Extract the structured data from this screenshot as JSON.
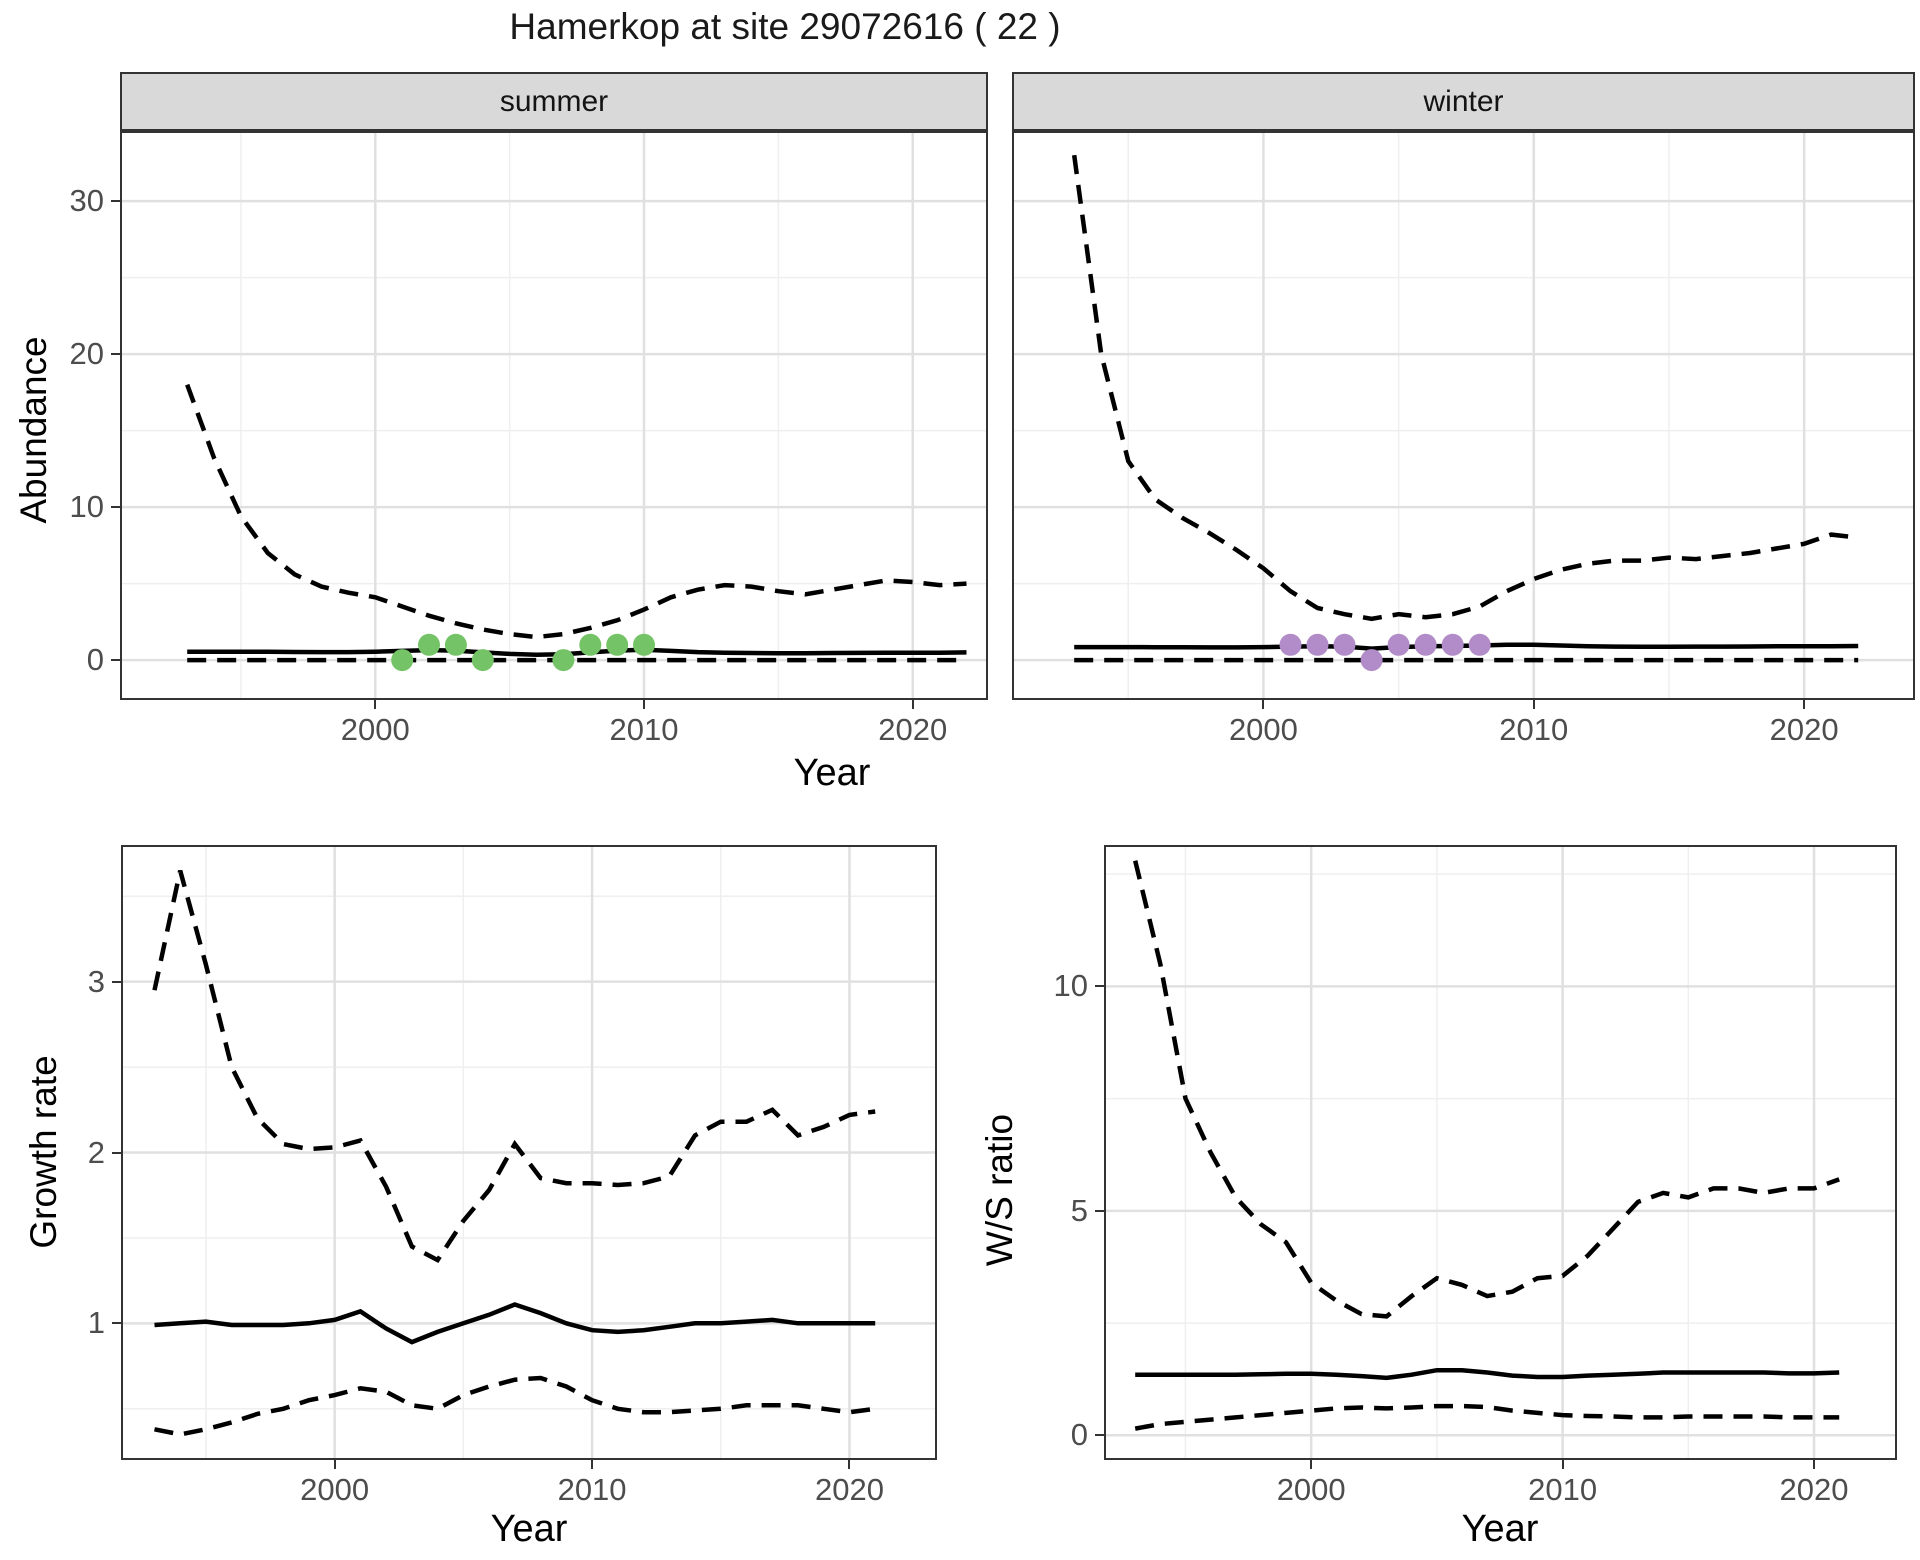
{
  "title": "Hamerkop at site 29072616 ( 22 )",
  "colors": {
    "summer_points": "#74C366",
    "winter_points": "#B18CC8",
    "line": "#000000",
    "strip_background": "#D9D9D9",
    "grid_major": "#E0E0E0",
    "grid_minor": "#EFEFEF"
  },
  "chart_data": [
    {
      "id": "summer",
      "type": "line",
      "facet": "summer",
      "xlabel": "Year",
      "ylabel": "Abundance",
      "xlim": [
        1990.5,
        2022.8
      ],
      "ylim": [
        -2.61,
        34.58
      ],
      "xticks": [
        2000,
        2010,
        2020
      ],
      "yticks": [
        0,
        10,
        20,
        30
      ],
      "xminor": [
        1995,
        2005,
        2015
      ],
      "yminor": [
        5,
        15,
        25
      ],
      "grid": true,
      "legend": "none",
      "x": [
        1993,
        1994,
        1995,
        1996,
        1997,
        1998,
        1999,
        2000,
        2001,
        2002,
        2003,
        2004,
        2005,
        2006,
        2007,
        2008,
        2009,
        2010,
        2011,
        2012,
        2013,
        2014,
        2015,
        2016,
        2017,
        2018,
        2019,
        2020,
        2021,
        2022
      ],
      "series": [
        {
          "name": "upper_ci",
          "style": "dashed",
          "values": [
            18.0,
            13.2,
            9.4,
            7.0,
            5.6,
            4.8,
            4.4,
            4.1,
            3.5,
            2.9,
            2.4,
            2.0,
            1.7,
            1.5,
            1.7,
            2.1,
            2.6,
            3.3,
            4.1,
            4.6,
            4.9,
            4.8,
            4.5,
            4.3,
            4.6,
            4.9,
            5.2,
            5.1,
            4.9,
            5.0
          ]
        },
        {
          "name": "mean",
          "style": "solid",
          "values": [
            0.55,
            0.55,
            0.55,
            0.54,
            0.53,
            0.52,
            0.52,
            0.55,
            0.6,
            0.65,
            0.62,
            0.5,
            0.4,
            0.35,
            0.38,
            0.5,
            0.62,
            0.68,
            0.6,
            0.52,
            0.48,
            0.46,
            0.45,
            0.45,
            0.46,
            0.47,
            0.48,
            0.48,
            0.48,
            0.5
          ]
        },
        {
          "name": "lower_ci",
          "style": "dashed",
          "values": [
            0,
            0,
            0,
            0,
            0,
            0,
            0,
            0,
            0,
            0,
            0,
            0,
            0,
            0,
            0,
            0,
            0,
            0,
            0,
            0,
            0,
            0,
            0,
            0,
            0,
            0,
            0,
            0,
            0,
            0
          ]
        }
      ],
      "points": {
        "name": "observed_counts",
        "color": "#74C366",
        "x": [
          2001,
          2002,
          2003,
          2004,
          2007,
          2008,
          2009,
          2010
        ],
        "y": [
          0,
          1,
          1,
          0,
          0,
          1,
          1,
          1
        ]
      }
    },
    {
      "id": "winter",
      "type": "line",
      "facet": "winter",
      "xlabel": "Year",
      "ylabel": "Abundance",
      "xlim": [
        1990.7,
        2024.1
      ],
      "ylim": [
        -2.61,
        34.58
      ],
      "xticks": [
        2000,
        2010,
        2020
      ],
      "yticks": [
        0,
        10,
        20,
        30
      ],
      "xminor": [
        1995,
        2005,
        2015
      ],
      "yminor": [
        5,
        15,
        25
      ],
      "grid": true,
      "legend": "none",
      "x": [
        1993,
        1994,
        1995,
        1996,
        1997,
        1998,
        1999,
        2000,
        2001,
        2002,
        2003,
        2004,
        2005,
        2006,
        2007,
        2008,
        2009,
        2010,
        2011,
        2012,
        2013,
        2014,
        2015,
        2016,
        2017,
        2018,
        2019,
        2020,
        2021,
        2022
      ],
      "series": [
        {
          "name": "upper_ci",
          "style": "dashed",
          "values": [
            33.0,
            20.0,
            13.0,
            10.5,
            9.3,
            8.3,
            7.2,
            6.0,
            4.5,
            3.4,
            3.0,
            2.7,
            3.0,
            2.8,
            3.0,
            3.5,
            4.5,
            5.3,
            5.9,
            6.3,
            6.5,
            6.5,
            6.7,
            6.6,
            6.8,
            7.0,
            7.3,
            7.6,
            8.2,
            8.0
          ]
        },
        {
          "name": "mean",
          "style": "solid",
          "values": [
            0.85,
            0.85,
            0.85,
            0.84,
            0.84,
            0.83,
            0.83,
            0.85,
            0.88,
            0.9,
            0.88,
            0.75,
            0.85,
            0.9,
            0.92,
            0.95,
            1.0,
            1.0,
            0.95,
            0.9,
            0.88,
            0.87,
            0.87,
            0.88,
            0.88,
            0.89,
            0.9,
            0.9,
            0.9,
            0.92
          ]
        },
        {
          "name": "lower_ci",
          "style": "dashed",
          "values": [
            0,
            0,
            0,
            0,
            0,
            0,
            0,
            0,
            0,
            0,
            0,
            0,
            0,
            0,
            0,
            0,
            0,
            0,
            0,
            0,
            0,
            0,
            0,
            0,
            0,
            0,
            0,
            0,
            0,
            0
          ]
        }
      ],
      "points": {
        "name": "observed_counts",
        "color": "#B18CC8",
        "x": [
          2001,
          2002,
          2003,
          2004,
          2005,
          2006,
          2007,
          2008
        ],
        "y": [
          1,
          1,
          1,
          0,
          1,
          1,
          1,
          1
        ]
      }
    },
    {
      "id": "growth",
      "type": "line",
      "facet": "",
      "xlabel": "Year",
      "ylabel": "Growth rate",
      "xlim": [
        1991.7,
        2023.4
      ],
      "ylim": [
        0.2,
        3.8
      ],
      "xticks": [
        2000,
        2010,
        2020
      ],
      "yticks": [
        1,
        2,
        3
      ],
      "xminor": [
        1995,
        2005,
        2015
      ],
      "yminor": [
        0.5,
        1.5,
        2.5,
        3.5
      ],
      "grid": true,
      "legend": "none",
      "x": [
        1993,
        1994,
        1995,
        1996,
        1997,
        1998,
        1999,
        2000,
        2001,
        2002,
        2003,
        2004,
        2005,
        2006,
        2007,
        2008,
        2009,
        2010,
        2011,
        2012,
        2013,
        2014,
        2015,
        2016,
        2017,
        2018,
        2019,
        2020,
        2021
      ],
      "series": [
        {
          "name": "upper_ci",
          "style": "dashed",
          "values": [
            2.95,
            3.65,
            3.1,
            2.5,
            2.2,
            2.05,
            2.02,
            2.03,
            2.07,
            1.8,
            1.45,
            1.37,
            1.6,
            1.78,
            2.05,
            1.85,
            1.82,
            1.82,
            1.81,
            1.82,
            1.86,
            2.1,
            2.18,
            2.18,
            2.25,
            2.1,
            2.15,
            2.22,
            2.24
          ]
        },
        {
          "name": "mean",
          "style": "solid",
          "values": [
            0.99,
            1.0,
            1.01,
            0.99,
            0.99,
            0.99,
            1.0,
            1.02,
            1.07,
            0.97,
            0.89,
            0.95,
            1.0,
            1.05,
            1.11,
            1.06,
            1.0,
            0.96,
            0.95,
            0.96,
            0.98,
            1.0,
            1.0,
            1.01,
            1.02,
            1.0,
            1.0,
            1.0,
            1.0
          ]
        },
        {
          "name": "lower_ci",
          "style": "dashed",
          "values": [
            0.38,
            0.35,
            0.38,
            0.42,
            0.47,
            0.5,
            0.55,
            0.58,
            0.62,
            0.6,
            0.52,
            0.5,
            0.58,
            0.63,
            0.67,
            0.68,
            0.63,
            0.55,
            0.5,
            0.48,
            0.48,
            0.49,
            0.5,
            0.52,
            0.52,
            0.52,
            0.5,
            0.48,
            0.5
          ]
        }
      ]
    },
    {
      "id": "ws",
      "type": "line",
      "facet": "",
      "xlabel": "Year",
      "ylabel": "W/S ratio",
      "xlim": [
        1991.76,
        2023.3
      ],
      "ylim": [
        -0.55,
        13.15
      ],
      "xticks": [
        2000,
        2010,
        2020
      ],
      "yticks": [
        0,
        5,
        10
      ],
      "xminor": [
        1995,
        2005,
        2015
      ],
      "yminor": [
        2.5,
        7.5,
        12.5
      ],
      "grid": true,
      "legend": "none",
      "x": [
        1993,
        1994,
        1995,
        1996,
        1997,
        1998,
        1999,
        2000,
        2001,
        2002,
        2003,
        2004,
        2005,
        2006,
        2007,
        2008,
        2009,
        2010,
        2011,
        2012,
        2013,
        2014,
        2015,
        2016,
        2017,
        2018,
        2019,
        2020,
        2021
      ],
      "series": [
        {
          "name": "upper_ci",
          "style": "dashed",
          "values": [
            12.8,
            10.5,
            7.5,
            6.3,
            5.3,
            4.7,
            4.3,
            3.4,
            3.0,
            2.7,
            2.65,
            3.1,
            3.5,
            3.35,
            3.1,
            3.2,
            3.5,
            3.55,
            4.0,
            4.6,
            5.2,
            5.4,
            5.3,
            5.5,
            5.5,
            5.4,
            5.5,
            5.5,
            5.7
          ]
        },
        {
          "name": "mean",
          "style": "solid",
          "values": [
            1.35,
            1.35,
            1.35,
            1.35,
            1.35,
            1.36,
            1.37,
            1.37,
            1.35,
            1.32,
            1.28,
            1.35,
            1.45,
            1.45,
            1.4,
            1.33,
            1.3,
            1.3,
            1.33,
            1.35,
            1.37,
            1.4,
            1.4,
            1.4,
            1.4,
            1.4,
            1.38,
            1.38,
            1.4
          ]
        },
        {
          "name": "lower_ci",
          "style": "dashed",
          "values": [
            0.15,
            0.25,
            0.3,
            0.35,
            0.4,
            0.45,
            0.5,
            0.55,
            0.6,
            0.62,
            0.6,
            0.62,
            0.65,
            0.65,
            0.63,
            0.55,
            0.5,
            0.45,
            0.43,
            0.42,
            0.4,
            0.4,
            0.42,
            0.42,
            0.42,
            0.42,
            0.4,
            0.4,
            0.4
          ]
        }
      ]
    }
  ]
}
